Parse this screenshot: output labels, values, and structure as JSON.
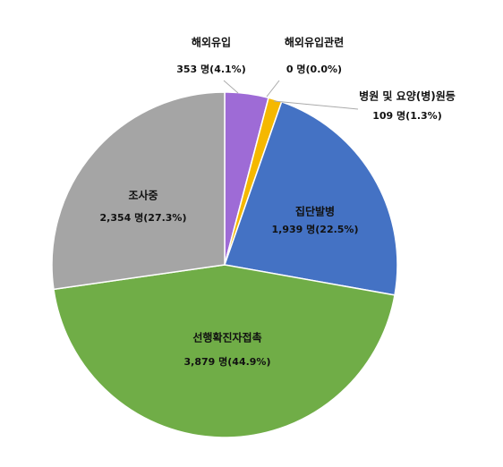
{
  "chart_data": {
    "type": "pie",
    "categories": [
      "해외유입",
      "해외유입관련",
      "병원 및 요양(병)원등",
      "집단발병",
      "선행확진자접촉",
      "조사중"
    ],
    "values": [
      353,
      0,
      109,
      1939,
      3879,
      2354
    ],
    "value_labels": [
      "353 명(4.1%)",
      "0 명(0.0%)",
      "109 명(1.3%)",
      "1,939 명(22.5%)",
      "3,879 명(44.9%)",
      "2,354 명(27.3%)"
    ],
    "colors": [
      "#9e6bd6",
      "#ed7d31",
      "#f5b800",
      "#4472c4",
      "#70ad47",
      "#a5a5a5"
    ]
  }
}
